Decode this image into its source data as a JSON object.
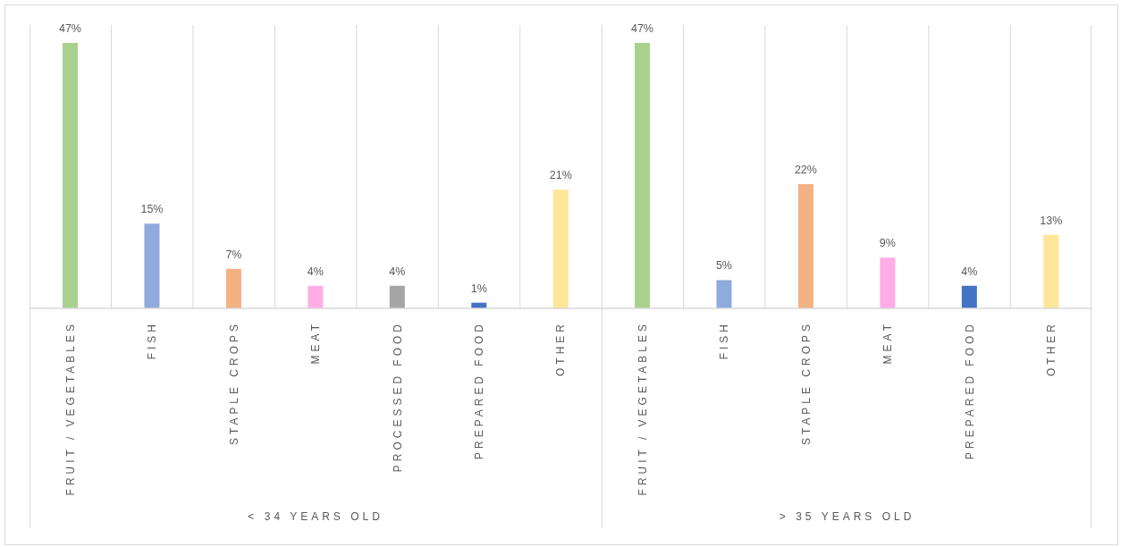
{
  "chart_data": [
    {
      "type": "bar",
      "xlabel": "< 34 YEARS OLD",
      "categories": [
        "FRUIT / VEGETABLES",
        "FISH",
        "STAPLE CROPS",
        "MEAT",
        "PROCESSED FOOD",
        "PREPARED FOOD",
        "OTHER"
      ],
      "values": [
        47,
        15,
        7,
        4,
        4,
        1,
        21
      ],
      "colors": [
        "#a9d18e",
        "#8faadc",
        "#f4b183",
        "#ffade6",
        "#a5a5a5",
        "#4472c4",
        "#ffe699"
      ],
      "value_labels": [
        "47%",
        "15%",
        "7%",
        "4%",
        "4%",
        "1%",
        "21%"
      ],
      "grid": "x"
    },
    {
      "type": "bar",
      "xlabel": "> 35 YEARS OLD",
      "categories": [
        "FRUIT / VEGETABLES",
        "FISH",
        "STAPLE CROPS",
        "MEAT",
        "PREPARED FOOD",
        "OTHER"
      ],
      "values": [
        47,
        5,
        22,
        9,
        4,
        13
      ],
      "colors": [
        "#a9d18e",
        "#8faadc",
        "#f4b183",
        "#ffade6",
        "#4472c4",
        "#ffe699"
      ],
      "value_labels": [
        "47%",
        "5%",
        "22%",
        "9%",
        "4%",
        "13%"
      ],
      "grid": "x"
    }
  ]
}
